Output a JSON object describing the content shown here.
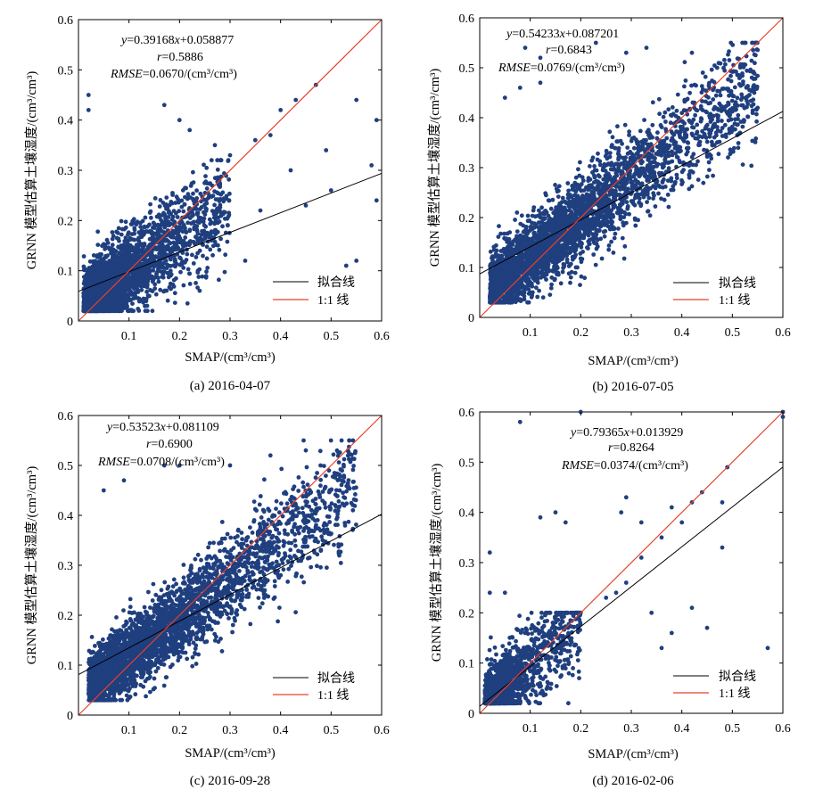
{
  "figure": {
    "panels": [
      {
        "caption": "(a) 2016-04-07",
        "eq_slope": "0.39168",
        "eq_intercept": "+0.058877",
        "r_value": "=0.5886",
        "rmse_value": "=0.0670/(cm³/cm³)"
      },
      {
        "caption": "(b) 2016-07-05",
        "eq_slope": "0.54233",
        "eq_intercept": "+0.087201",
        "r_value": "=0.6843",
        "rmse_value": "=0.0769/(cm³/cm³)"
      },
      {
        "caption": "(c) 2016-09-28",
        "eq_slope": "0.53523",
        "eq_intercept": "+0.081109",
        "r_value": "=0.6900",
        "rmse_value": "=0.0708/(cm³/cm³)"
      },
      {
        "caption": "(d) 2016-02-06",
        "eq_slope": "0.79365",
        "eq_intercept": "+0.013929",
        "r_value": "=0.8264",
        "rmse_value": "=0.0374/(cm³/cm³)"
      }
    ],
    "eq_y": "y",
    "eq_x": "x",
    "r_label": "r",
    "rmse_label": "RMSE",
    "xlabel": "SMAP/(cm³/cm³)",
    "ylabel": "GRNN 模型估算土壤湿度/(cm³/cm³)",
    "legend_fit": "拟合线",
    "legend_one": "1:1 线"
  },
  "chart_data": [
    {
      "type": "scatter",
      "title": "(a) 2016-04-07",
      "xlabel": "SMAP/(cm³/cm³)",
      "ylabel": "GRNN 模型估算土壤湿度/(cm³/cm³)",
      "xlim": [
        0,
        0.6
      ],
      "ylim": [
        0,
        0.6
      ],
      "xticks": [
        0.1,
        0.2,
        0.3,
        0.4,
        0.5,
        0.6
      ],
      "yticks": [
        0,
        0.1,
        0.2,
        0.3,
        0.4,
        0.5,
        0.6
      ],
      "fit": {
        "slope": 0.39168,
        "intercept": 0.058877
      },
      "r": 0.5886,
      "rmse": 0.067,
      "cloud": {
        "x_range": [
          0.01,
          0.3
        ],
        "y_range": [
          0.02,
          0.32
        ],
        "center": [
          0.09,
          0.1
        ]
      },
      "outliers": [
        [
          0.02,
          0.45
        ],
        [
          0.02,
          0.42
        ],
        [
          0.17,
          0.43
        ],
        [
          0.2,
          0.4
        ],
        [
          0.22,
          0.38
        ],
        [
          0.27,
          0.35
        ],
        [
          0.3,
          0.33
        ],
        [
          0.35,
          0.36
        ],
        [
          0.38,
          0.37
        ],
        [
          0.4,
          0.42
        ],
        [
          0.43,
          0.44
        ],
        [
          0.47,
          0.47
        ],
        [
          0.49,
          0.34
        ],
        [
          0.55,
          0.44
        ],
        [
          0.59,
          0.4
        ],
        [
          0.36,
          0.22
        ],
        [
          0.42,
          0.3
        ],
        [
          0.45,
          0.23
        ],
        [
          0.55,
          0.12
        ],
        [
          0.58,
          0.31
        ],
        [
          0.59,
          0.24
        ],
        [
          0.5,
          0.26
        ],
        [
          0.53,
          0.11
        ],
        [
          0.33,
          0.12
        ]
      ],
      "legend": [
        "拟合线",
        "1:1 线"
      ],
      "legend_position": "bottom-right",
      "grid": false
    },
    {
      "type": "scatter",
      "title": "(b) 2016-07-05",
      "xlabel": "SMAP/(cm³/cm³)",
      "ylabel": "GRNN 模型估算土壤湿度/(cm³/cm³)",
      "xlim": [
        0,
        0.6
      ],
      "ylim": [
        0,
        0.6
      ],
      "xticks": [
        0.1,
        0.2,
        0.3,
        0.4,
        0.5,
        0.6
      ],
      "yticks": [
        0,
        0.1,
        0.2,
        0.3,
        0.4,
        0.5,
        0.6
      ],
      "fit": {
        "slope": 0.54233,
        "intercept": 0.087201
      },
      "r": 0.6843,
      "rmse": 0.0769,
      "cloud": {
        "x_range": [
          0.02,
          0.55
        ],
        "y_range": [
          0.03,
          0.55
        ],
        "center": [
          0.2,
          0.2
        ]
      },
      "outliers": [
        [
          0.09,
          0.54
        ],
        [
          0.12,
          0.52
        ],
        [
          0.23,
          0.55
        ],
        [
          0.29,
          0.53
        ],
        [
          0.33,
          0.54
        ],
        [
          0.42,
          0.53
        ],
        [
          0.47,
          0.5
        ],
        [
          0.08,
          0.46
        ],
        [
          0.12,
          0.47
        ],
        [
          0.05,
          0.44
        ]
      ],
      "legend": [
        "拟合线",
        "1:1 线"
      ],
      "legend_position": "bottom-right",
      "grid": false
    },
    {
      "type": "scatter",
      "title": "(c) 2016-09-28",
      "xlabel": "SMAP/(cm³/cm³)",
      "ylabel": "GRNN 模型估算土壤湿度/(cm³/cm³)",
      "xlim": [
        0,
        0.6
      ],
      "ylim": [
        0,
        0.6
      ],
      "xticks": [
        0.1,
        0.2,
        0.3,
        0.4,
        0.5,
        0.6
      ],
      "yticks": [
        0,
        0.1,
        0.2,
        0.3,
        0.4,
        0.5,
        0.6
      ],
      "fit": {
        "slope": 0.53523,
        "intercept": 0.081109
      },
      "r": 0.69,
      "rmse": 0.0708,
      "cloud": {
        "x_range": [
          0.02,
          0.55
        ],
        "y_range": [
          0.03,
          0.55
        ],
        "center": [
          0.18,
          0.18
        ]
      },
      "outliers": [
        [
          0.05,
          0.45
        ],
        [
          0.09,
          0.47
        ],
        [
          0.17,
          0.5
        ],
        [
          0.2,
          0.5
        ],
        [
          0.3,
          0.5
        ],
        [
          0.38,
          0.52
        ],
        [
          0.45,
          0.53
        ]
      ],
      "legend": [
        "拟合线",
        "1:1 线"
      ],
      "legend_position": "bottom-right",
      "grid": false
    },
    {
      "type": "scatter",
      "title": "(d) 2016-02-06",
      "xlabel": "SMAP/(cm³/cm³)",
      "ylabel": "GRNN 模型估算土壤湿度/(cm³/cm³)",
      "xlim": [
        0,
        0.6
      ],
      "ylim": [
        0,
        0.6
      ],
      "xticks": [
        0.1,
        0.2,
        0.3,
        0.4,
        0.5,
        0.6
      ],
      "yticks": [
        0,
        0.1,
        0.2,
        0.3,
        0.4,
        0.5,
        0.6
      ],
      "fit": {
        "slope": 0.79365,
        "intercept": 0.013929
      },
      "r": 0.8264,
      "rmse": 0.0374,
      "cloud": {
        "x_range": [
          0.01,
          0.2
        ],
        "y_range": [
          0.02,
          0.2
        ],
        "center": [
          0.05,
          0.05
        ]
      },
      "outliers": [
        [
          0.08,
          0.58
        ],
        [
          0.2,
          0.6
        ],
        [
          0.6,
          0.6
        ],
        [
          0.6,
          0.59
        ],
        [
          0.15,
          0.4
        ],
        [
          0.12,
          0.39
        ],
        [
          0.17,
          0.38
        ],
        [
          0.28,
          0.4
        ],
        [
          0.29,
          0.43
        ],
        [
          0.32,
          0.38
        ],
        [
          0.32,
          0.31
        ],
        [
          0.36,
          0.35
        ],
        [
          0.38,
          0.41
        ],
        [
          0.4,
          0.38
        ],
        [
          0.42,
          0.42
        ],
        [
          0.44,
          0.44
        ],
        [
          0.48,
          0.42
        ],
        [
          0.49,
          0.49
        ],
        [
          0.48,
          0.33
        ],
        [
          0.02,
          0.24
        ],
        [
          0.02,
          0.32
        ],
        [
          0.05,
          0.24
        ],
        [
          0.57,
          0.13
        ],
        [
          0.42,
          0.21
        ],
        [
          0.45,
          0.17
        ],
        [
          0.34,
          0.2
        ],
        [
          0.38,
          0.16
        ],
        [
          0.36,
          0.13
        ],
        [
          0.29,
          0.26
        ],
        [
          0.27,
          0.24
        ],
        [
          0.25,
          0.23
        ]
      ],
      "legend": [
        "拟合线",
        "1:1 线"
      ],
      "legend_position": "bottom-right",
      "grid": false
    }
  ]
}
